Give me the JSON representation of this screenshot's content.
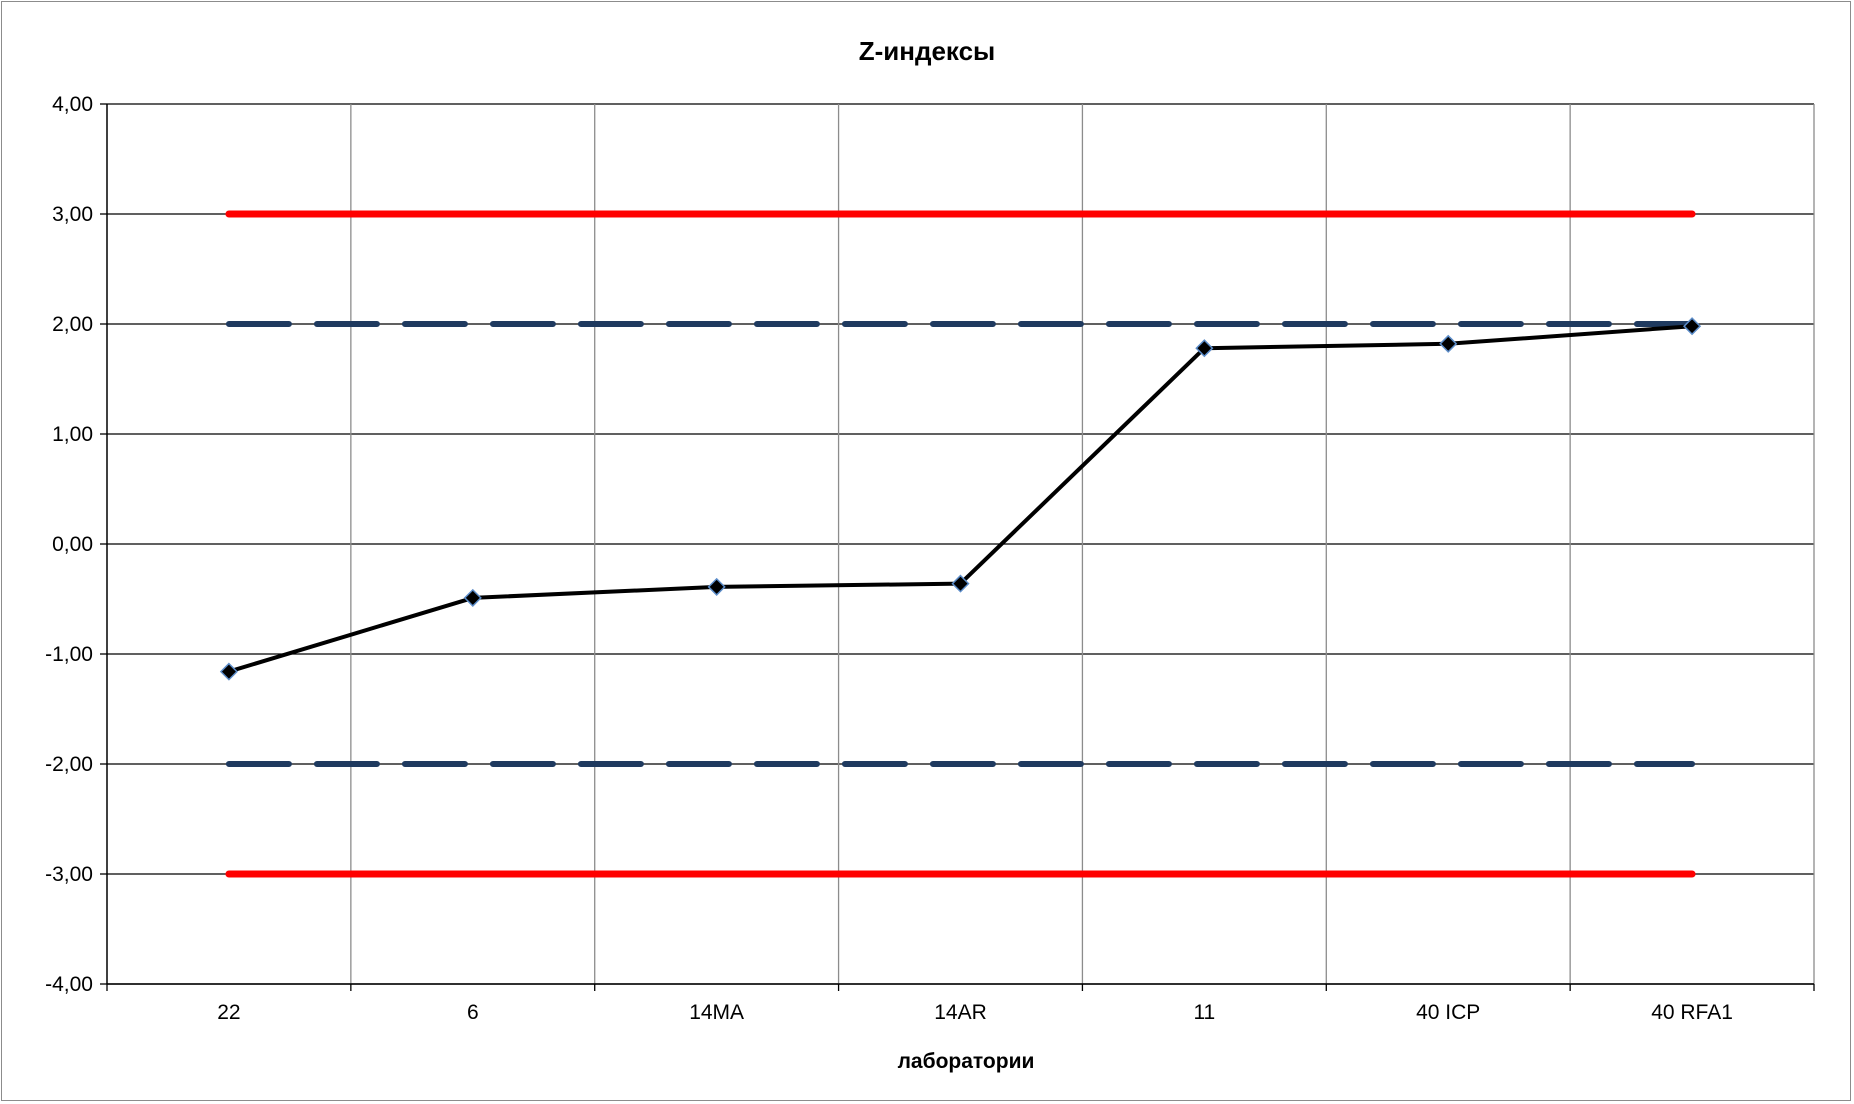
{
  "chart_data": {
    "type": "line",
    "title": "Z-индексы",
    "xlabel": "лаборатории",
    "ylabel": "",
    "categories": [
      "22",
      "6",
      "14MA",
      "14AR",
      "11",
      "40 ICP",
      "40 RFA1"
    ],
    "y_tick_labels": [
      "4,00",
      "3,00",
      "2,00",
      "1,00",
      "0,00",
      "-1,00",
      "-2,00",
      "-3,00",
      "-4,00"
    ],
    "ylim": [
      -4,
      4
    ],
    "grid": true,
    "legend": "none",
    "series": [
      {
        "values": [
          -1.16,
          -0.49,
          -0.39,
          -0.36,
          1.78,
          1.82,
          1.98
        ],
        "color": "#000000",
        "marker": "diamond",
        "style": "solid"
      },
      {
        "values": [
          3,
          3,
          3,
          3,
          3,
          3,
          3
        ],
        "color": "#ff0000",
        "style": "solid"
      },
      {
        "values": [
          -3,
          -3,
          -3,
          -3,
          -3,
          -3,
          -3
        ],
        "color": "#ff0000",
        "style": "solid"
      },
      {
        "values": [
          2,
          2,
          2,
          2,
          2,
          2,
          2
        ],
        "color": "#1f3a5f",
        "style": "dashed"
      },
      {
        "values": [
          -2,
          -2,
          -2,
          -2,
          -2,
          -2,
          -2
        ],
        "color": "#1f3a5f",
        "style": "dashed"
      }
    ]
  }
}
